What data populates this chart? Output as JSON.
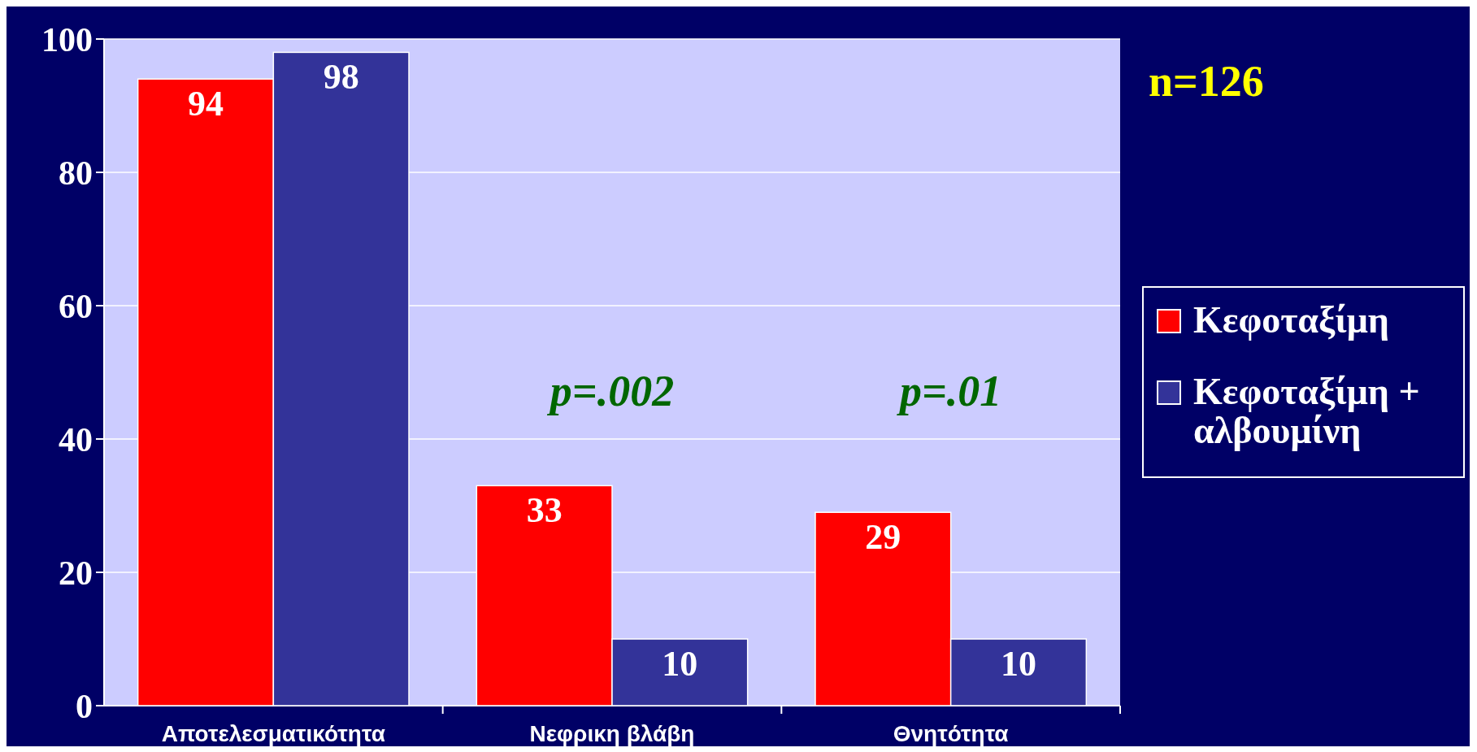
{
  "chart_data": {
    "type": "bar",
    "categories": [
      "Αποτελεσματικότητα",
      "Νεφρικη βλάβη",
      "Θνητότητα"
    ],
    "series": [
      {
        "name": "Κεφοταξίμη",
        "color": "#ff0000",
        "values": [
          94,
          33,
          29
        ]
      },
      {
        "name": "Κεφοταξίμη + αλβουμίνη",
        "color": "#333399",
        "values": [
          98,
          10,
          10
        ]
      }
    ],
    "ylim": [
      0,
      100
    ],
    "yticks": [
      0,
      20,
      40,
      60,
      80,
      100
    ],
    "grid": "y",
    "legend": "right",
    "data_labels": true,
    "annotations": [
      "n=126",
      "p=.002",
      "p=.01"
    ]
  }
}
